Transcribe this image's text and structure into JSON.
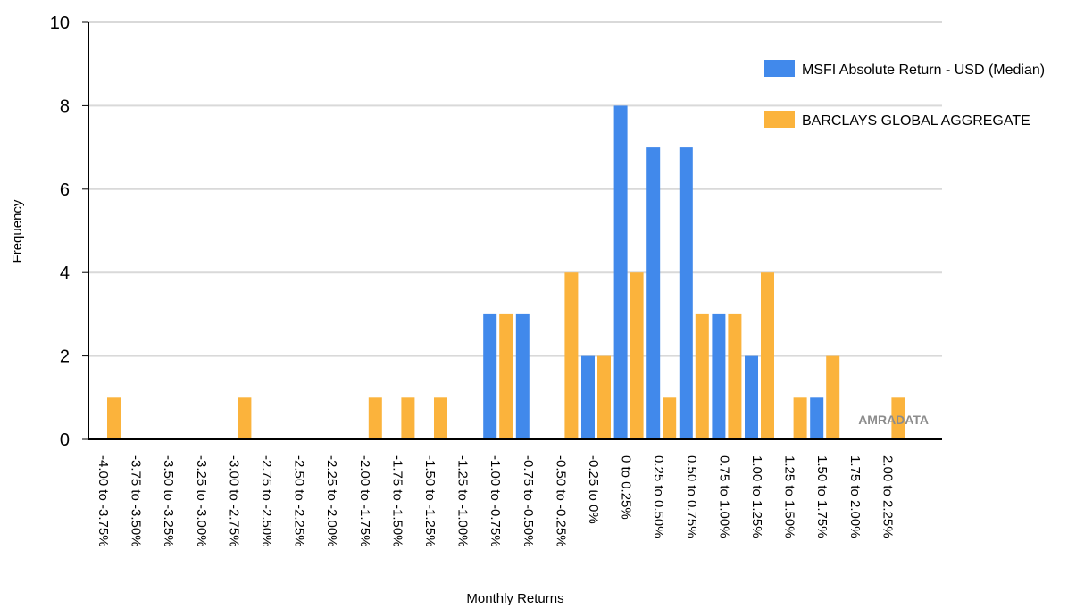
{
  "chart_data": {
    "type": "bar",
    "title": "",
    "xlabel": "Monthly Returns",
    "ylabel": "Frequency",
    "ylim": [
      0,
      10
    ],
    "yticks": [
      0,
      2,
      4,
      6,
      8,
      10
    ],
    "grid": true,
    "legend_position": "top-right",
    "watermark": "AMRADATA",
    "categories": [
      "-4.00 to -3.75%",
      "-3.75 to -3.50%",
      "-3.50 to -3.25%",
      "-3.25 to -3.00%",
      "-3.00 to -2.75%",
      "-2.75 to -2.50%",
      "-2.50 to -2.25%",
      "-2.25 to -2.00%",
      "-2.00 to -1.75%",
      "-1.75 to -1.50%",
      "-1.50 to -1.25%",
      "-1.25 to -1.00%",
      "-1.00 to -0.75%",
      "-0.75 to -0.50%",
      "-0.50 to -0.25%",
      "-0.25 to 0%",
      "0 to 0.25%",
      "0.25 to 0.50%",
      "0.50 to 0.75%",
      "0.75 to 1.00%",
      "1.00 to 1.25%",
      "1.25 to 1.50%",
      "1.50 to 1.75%",
      "1.75 to 2.00%",
      "2.00 to 2.25%"
    ],
    "series": [
      {
        "name": "MSFI Absolute Return - USD (Median)",
        "color": "#4189eb",
        "values": [
          0,
          0,
          0,
          0,
          0,
          0,
          0,
          0,
          0,
          0,
          0,
          0,
          3,
          3,
          0,
          2,
          8,
          7,
          7,
          3,
          2,
          0,
          1,
          0,
          0
        ]
      },
      {
        "name": "BARCLAYS GLOBAL AGGREGATE",
        "color": "#fbb33c",
        "values": [
          1,
          0,
          0,
          0,
          1,
          0,
          0,
          0,
          1,
          1,
          1,
          0,
          3,
          0,
          4,
          2,
          4,
          1,
          3,
          3,
          4,
          1,
          2,
          0,
          1
        ]
      }
    ]
  }
}
